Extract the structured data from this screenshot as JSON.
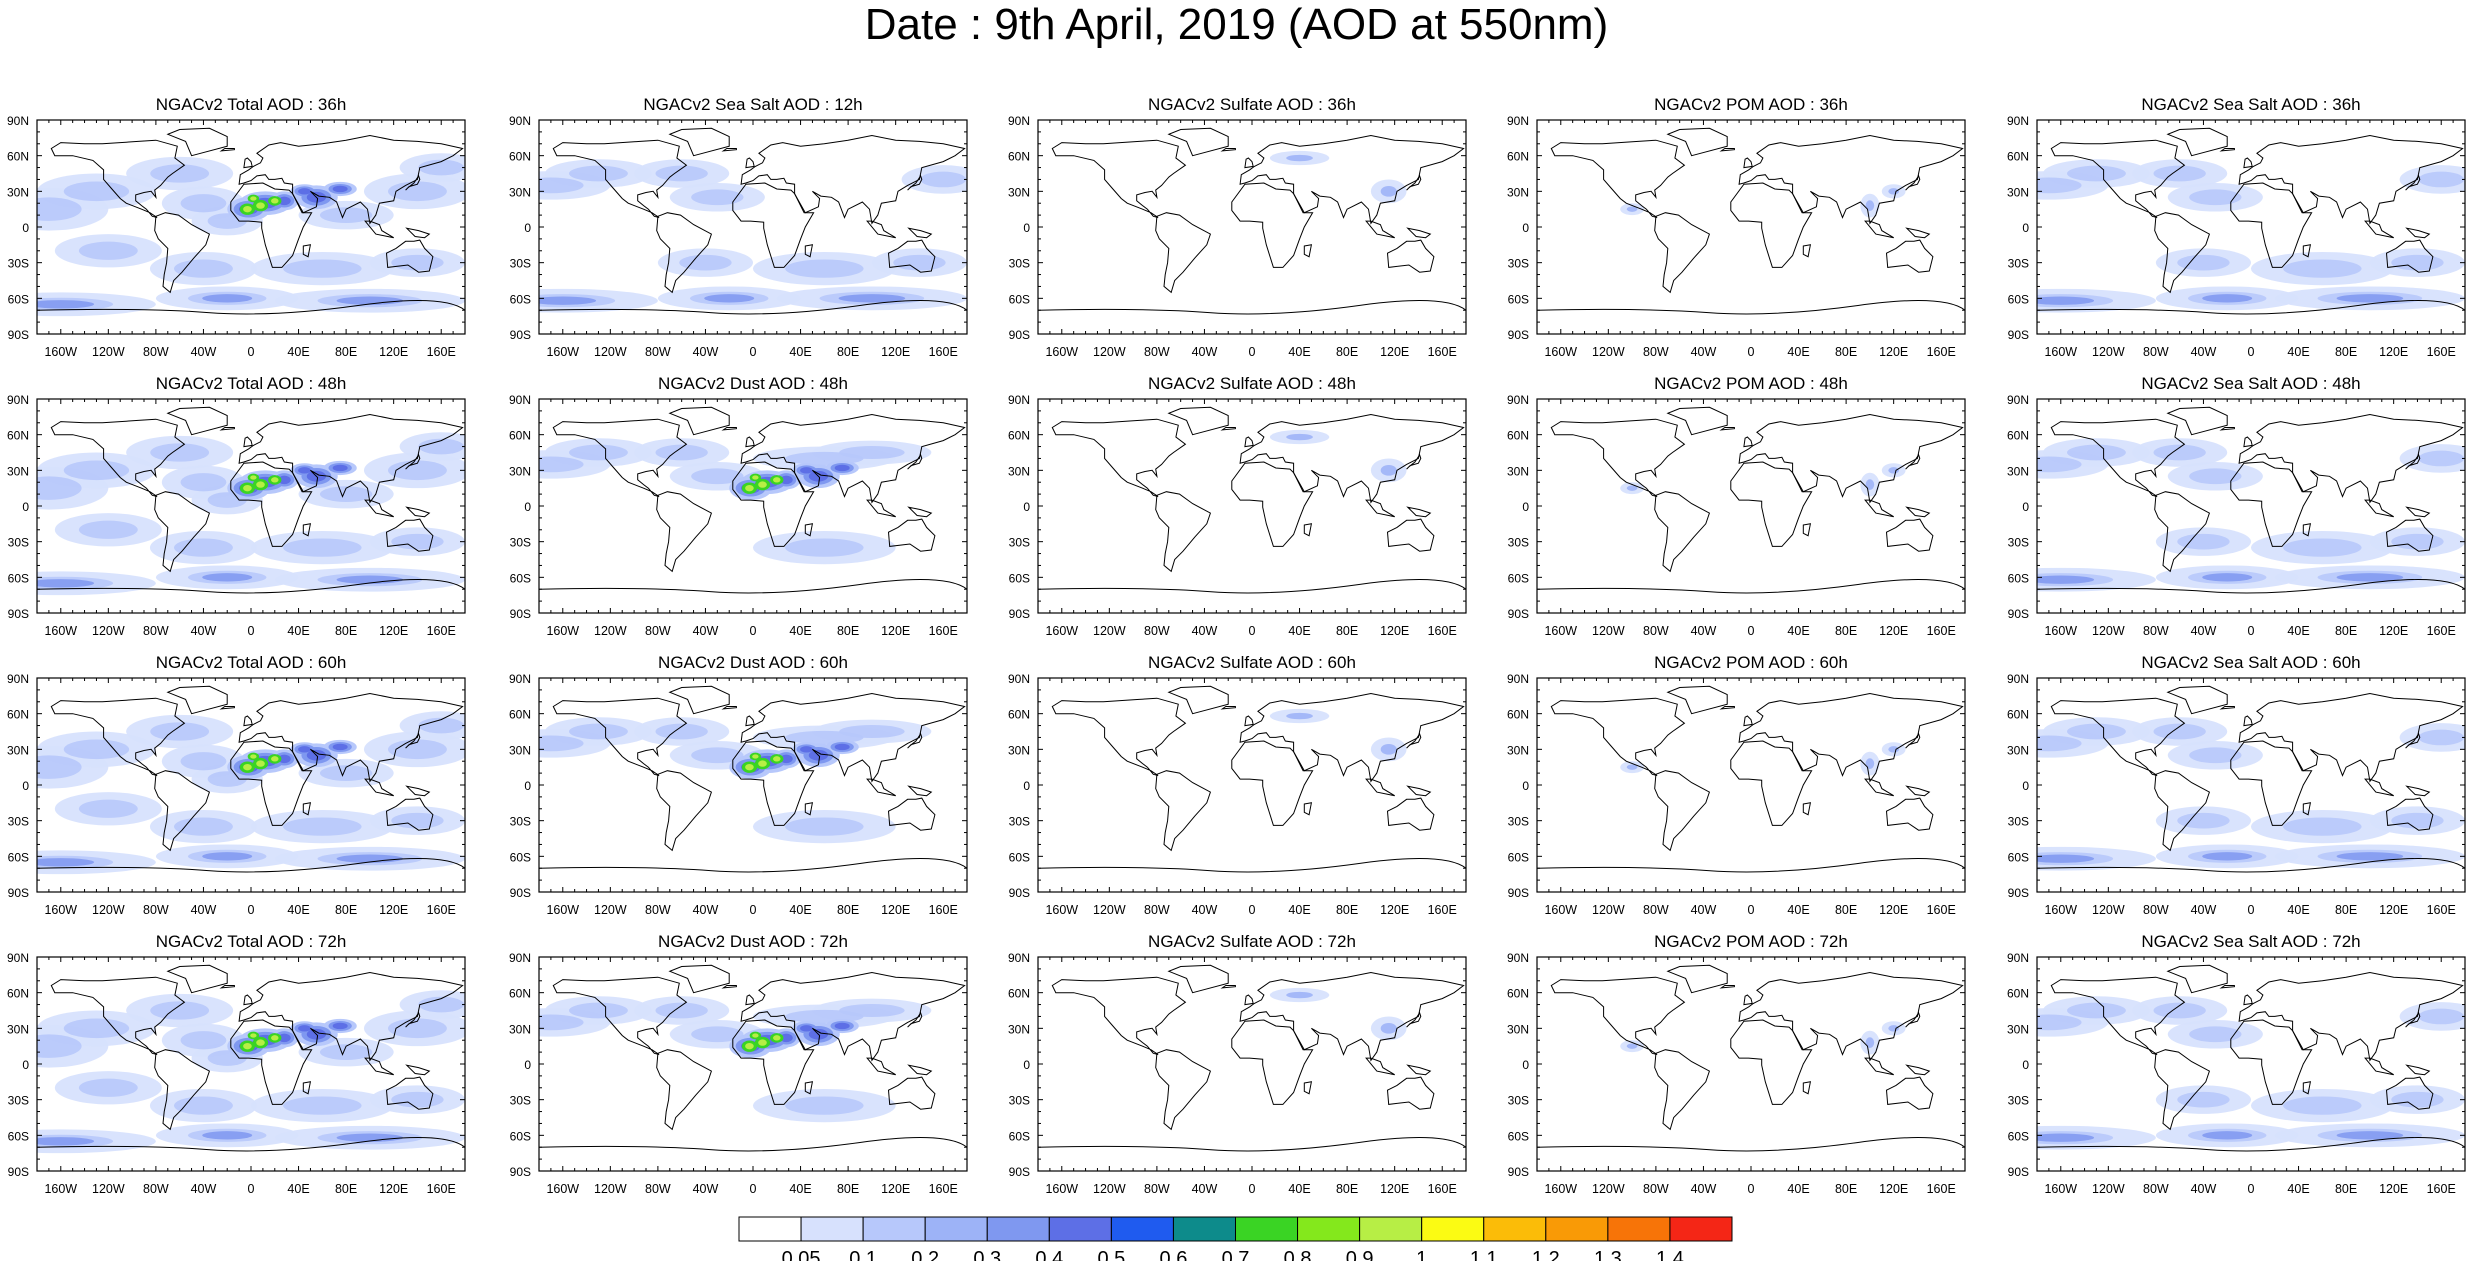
{
  "title": "Date : 9th April, 2019 (AOD at 550nm)",
  "rows": [
    [
      "NGACv2 Total AOD : 36h",
      "NGACv2 Sea Salt  AOD : 12h",
      "NGACv2 Sulfate AOD : 36h",
      "NGACv2 POM AOD : 36h",
      "NGACv2 Sea Salt  AOD : 36h"
    ],
    [
      "NGACv2 Total AOD : 48h",
      "NGACv2 Dust AOD : 48h",
      "NGACv2 Sulfate AOD : 48h",
      "NGACv2 POM AOD : 48h",
      "NGACv2 Sea Salt  AOD : 48h"
    ],
    [
      "NGACv2 Total AOD : 60h",
      "NGACv2 Dust AOD : 60h",
      "NGACv2 Sulfate AOD : 60h",
      "NGACv2 POM AOD : 60h",
      "NGACv2 Sea Salt  AOD : 60h"
    ],
    [
      "NGACv2 Total AOD : 72h",
      "NGACv2 Dust AOD : 72h",
      "NGACv2 Sulfate AOD : 72h",
      "NGACv2 POM AOD : 72h",
      "NGACv2 Sea Salt  AOD : 72h"
    ]
  ],
  "lat_ticks": [
    "90N",
    "60N",
    "30N",
    "0",
    "30S",
    "60S",
    "90S"
  ],
  "lon_ticks": [
    "160W",
    "120W",
    "80W",
    "40W",
    "0",
    "40E",
    "80E",
    "120E",
    "160E"
  ],
  "colorbar": {
    "labels": [
      "0.05",
      "0.1",
      "0.2",
      "0.3",
      "0.4",
      "0.5",
      "0.6",
      "0.7",
      "0.8",
      "0.9",
      "1",
      "1.1",
      "1.2",
      "1.3",
      "1.4"
    ],
    "colors": [
      "#ffffff",
      "#d7e1fd",
      "#b7c8fb",
      "#9db3f7",
      "#7f98f0",
      "#5d6fe6",
      "#1f5bef",
      "#0d8b8b",
      "#3ad424",
      "#84e81c",
      "#b7ee45",
      "#fbfb13",
      "#fbbc08",
      "#f99a06",
      "#f77408",
      "#f42616"
    ]
  }
}
